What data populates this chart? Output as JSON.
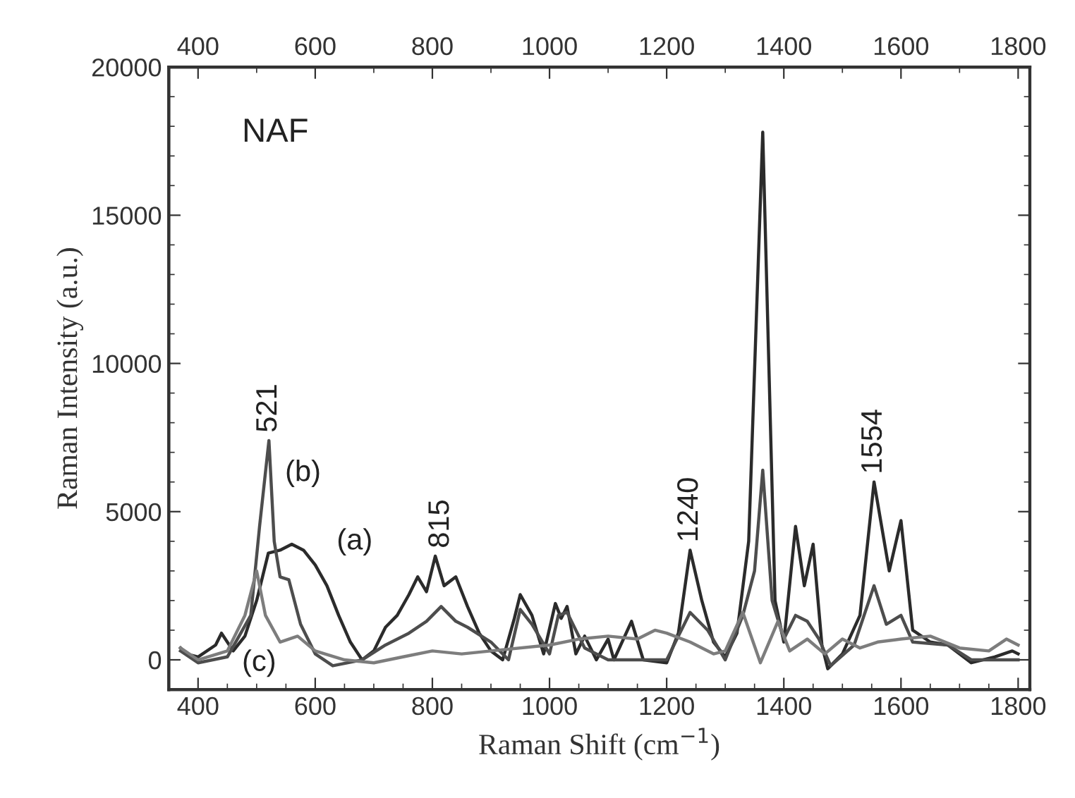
{
  "chart_data": {
    "type": "line",
    "xlabel": "Raman Shift (cm$^{−1}$)",
    "ylabel": "Raman Intensity (a.u.)",
    "xlim": [
      350,
      1820
    ],
    "xticks": [
      400,
      600,
      800,
      1000,
      1200,
      1400,
      1600,
      1800
    ],
    "x2lim": [
      350,
      1820
    ],
    "x2ticks": [
      400,
      600,
      800,
      1000,
      1200,
      1400,
      1600,
      1800
    ],
    "ylim": [
      -1000,
      20000
    ],
    "yticks": [
      0,
      5000,
      10000,
      15000,
      20000
    ],
    "grid": false,
    "marker": "none",
    "line_style": "solid",
    "series": [
      {
        "color": "#2b2b2b",
        "x": [
          370,
          380,
          400,
          430,
          440,
          460,
          480,
          500,
          520,
          540,
          560,
          580,
          600,
          620,
          640,
          660,
          680,
          700,
          720,
          740,
          760,
          775,
          790,
          805,
          820,
          840,
          860,
          880,
          900,
          920,
          940,
          950,
          970,
          990,
          1010,
          1020,
          1030,
          1045,
          1060,
          1080,
          1100,
          1110,
          1140,
          1160,
          1200,
          1220,
          1240,
          1260,
          1280,
          1300,
          1320,
          1340,
          1364,
          1385,
          1400,
          1420,
          1435,
          1450,
          1465,
          1475,
          1500,
          1530,
          1554,
          1580,
          1600,
          1620,
          1650,
          1680,
          1720,
          1760,
          1790,
          1800
        ],
        "values": [
          400,
          200,
          100,
          500,
          900,
          300,
          800,
          2000,
          3600,
          3700,
          3900,
          3700,
          3200,
          2500,
          1500,
          600,
          0,
          300,
          1100,
          1500,
          2200,
          2800,
          2300,
          3500,
          2500,
          2800,
          1800,
          900,
          300,
          0,
          1400,
          2200,
          1500,
          200,
          1900,
          1400,
          1800,
          200,
          800,
          0,
          700,
          0,
          1300,
          0,
          -100,
          900,
          3700,
          2000,
          600,
          100,
          900,
          4000,
          17800,
          2000,
          600,
          4500,
          2500,
          3900,
          500,
          -300,
          200,
          1500,
          6000,
          3000,
          4700,
          1000,
          600,
          500,
          -100,
          100,
          300,
          200
        ]
      },
      {
        "color": "#4d4d4d",
        "x": [
          370,
          400,
          450,
          490,
          505,
          521,
          530,
          540,
          555,
          575,
          600,
          630,
          680,
          720,
          760,
          790,
          815,
          840,
          860,
          900,
          930,
          950,
          970,
          1000,
          1015,
          1030,
          1060,
          1100,
          1200,
          1220,
          1240,
          1270,
          1300,
          1330,
          1350,
          1364,
          1380,
          1400,
          1420,
          1440,
          1460,
          1480,
          1520,
          1554,
          1575,
          1600,
          1620,
          1680,
          1720,
          1800
        ],
        "values": [
          300,
          -100,
          100,
          1500,
          4500,
          7400,
          4000,
          2800,
          2700,
          1200,
          200,
          -200,
          0,
          500,
          900,
          1300,
          1800,
          1300,
          1100,
          600,
          0,
          1700,
          1200,
          200,
          1500,
          1600,
          400,
          0,
          0,
          800,
          1600,
          1000,
          0,
          1500,
          3000,
          6400,
          2000,
          700,
          1500,
          1300,
          700,
          -200,
          500,
          2500,
          1200,
          1500,
          600,
          500,
          0,
          0
        ]
      },
      {
        "color": "#7d7d7d",
        "x": [
          370,
          400,
          450,
          480,
          500,
          515,
          540,
          570,
          600,
          650,
          700,
          750,
          800,
          850,
          900,
          1000,
          1050,
          1100,
          1150,
          1180,
          1200,
          1240,
          1280,
          1300,
          1330,
          1360,
          1390,
          1410,
          1440,
          1470,
          1500,
          1530,
          1560,
          1600,
          1650,
          1700,
          1750,
          1780,
          1800
        ],
        "values": [
          400,
          0,
          300,
          1500,
          3000,
          1500,
          600,
          800,
          300,
          0,
          -100,
          100,
          300,
          200,
          300,
          500,
          700,
          800,
          700,
          1000,
          900,
          600,
          200,
          300,
          1600,
          -100,
          1300,
          300,
          700,
          200,
          700,
          400,
          600,
          700,
          800,
          400,
          300,
          700,
          500
        ]
      }
    ],
    "annotations": [
      "NAF",
      {
        "text": "521",
        "x": 521,
        "y": 7400
      },
      {
        "text": "815",
        "x": 815,
        "y": 3500
      },
      {
        "text": "1240",
        "x": 1240,
        "y": 3700
      },
      {
        "text": "1554",
        "x": 1554,
        "y": 6000
      },
      "(a)",
      "(b)",
      "(c)"
    ]
  }
}
